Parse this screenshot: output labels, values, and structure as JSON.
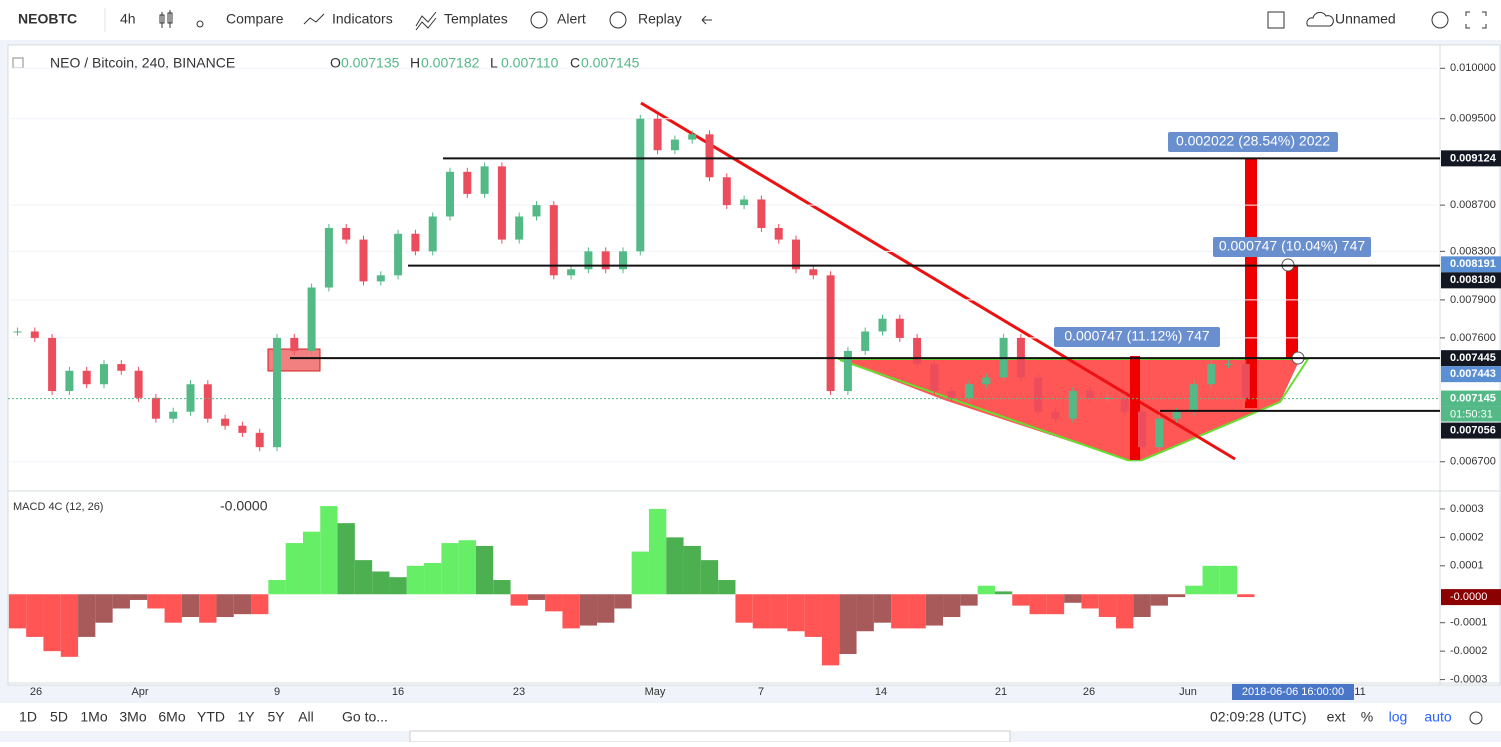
{
  "toolbar": {
    "symbol": "NEOBTC",
    "interval": "4h",
    "items": [
      "Compare",
      "Indicators",
      "Templates",
      "Alert",
      "Replay"
    ],
    "layout_name": "Unnamed"
  },
  "legend": {
    "title": "NEO / Bitcoin, 240, BINANCE",
    "ohlc": [
      {
        "key": "O",
        "value": "0.007135"
      },
      {
        "key": "H",
        "value": "0.007182"
      },
      {
        "key": "L",
        "value": "0.007110"
      },
      {
        "key": "C",
        "value": "0.007145"
      }
    ]
  },
  "price_chart": {
    "log": true,
    "ylim": [
      0.00651,
      0.01024
    ],
    "yticks": [
      {
        "value": 0.01,
        "label": "0.010000"
      },
      {
        "value": 0.0095,
        "label": "0.009500"
      },
      {
        "value": 0.0087,
        "label": "0.008700"
      },
      {
        "value": 0.0083,
        "label": "0.008300"
      },
      {
        "value": 0.0079,
        "label": "0.007900"
      },
      {
        "value": 0.0076,
        "label": "0.007600"
      },
      {
        "value": 0.0067,
        "label": "0.006700"
      }
    ],
    "closes": [
      0.00765,
      0.0076,
      0.0072,
      0.00735,
      0.00725,
      0.0074,
      0.00735,
      0.00715,
      0.007,
      0.00705,
      0.00725,
      0.007,
      0.00695,
      0.0069,
      0.0068,
      0.0076,
      0.0075,
      0.008,
      0.0085,
      0.0084,
      0.00805,
      0.0081,
      0.00845,
      0.0083,
      0.0086,
      0.009,
      0.0088,
      0.00905,
      0.0084,
      0.0086,
      0.0087,
      0.0081,
      0.00815,
      0.0083,
      0.00815,
      0.0083,
      0.0095,
      0.0092,
      0.0093,
      0.00935,
      0.00895,
      0.0087,
      0.00875,
      0.0085,
      0.0084,
      0.00815,
      0.0081,
      0.0072,
      0.0075,
      0.00765,
      0.00775,
      0.0076,
      0.0074,
      0.0072,
      0.00715,
      0.00725,
      0.0073,
      0.0076,
      0.0073,
      0.00705,
      0.007,
      0.0072,
      0.00715,
      0.00715,
      0.00705,
      0.0068,
      0.007,
      0.00705,
      0.00725,
      0.0074,
      0.0074,
      0.00715
    ],
    "price_labels": [
      {
        "value": 0.009124,
        "label": "0.009124",
        "style": "black"
      },
      {
        "value": 0.008191,
        "label": "0.008191",
        "style": "blue"
      },
      {
        "value": 0.00818,
        "label": "0.008180",
        "style": "black"
      },
      {
        "value": 0.007445,
        "label": "0.007445",
        "style": "black"
      },
      {
        "value": 0.007443,
        "label": "0.007443",
        "style": "blue"
      },
      {
        "value": 0.007145,
        "label": "0.007145",
        "style": "green"
      },
      {
        "value": 0.007056,
        "label": "0.007056",
        "style": "black"
      }
    ],
    "countdown": "01:50:31",
    "measures": [
      "0.002022 (28.54%) 2022",
      "0.000747 (10.04%) 747",
      "0.000747 (11.12%) 747"
    ]
  },
  "macd": {
    "title": "MACD 4C (12, 26)",
    "current": {
      "value": -1e-05,
      "label": "-0.0000"
    },
    "ylim": [
      -0.000312,
      0.000356
    ],
    "yticks": [
      0.0003,
      0.0002,
      0.0001,
      -0.0001,
      -0.0002,
      -0.0003
    ],
    "values": [
      -0.00012,
      -0.00015,
      -0.0002,
      -0.00022,
      -0.00015,
      -0.0001,
      -5e-05,
      -2e-05,
      -5e-05,
      -0.0001,
      -8e-05,
      -0.0001,
      -8e-05,
      -7e-05,
      -7e-05,
      5e-05,
      0.00018,
      0.00022,
      0.00031,
      0.00025,
      0.00012,
      8e-05,
      6e-05,
      0.0001,
      0.00011,
      0.00018,
      0.00019,
      0.00017,
      5e-05,
      -4e-05,
      -2e-05,
      -6e-05,
      -0.00012,
      -0.00011,
      -0.0001,
      -5e-05,
      0.00015,
      0.0003,
      0.0002,
      0.00017,
      0.00012,
      5e-05,
      -0.0001,
      -0.00012,
      -0.00012,
      -0.00013,
      -0.00015,
      -0.00025,
      -0.00021,
      -0.00013,
      -0.0001,
      -0.00012,
      -0.00012,
      -0.00011,
      -8e-05,
      -4e-05,
      3e-05,
      1e-05,
      -4e-05,
      -7e-05,
      -7e-05,
      -3e-05,
      -5e-05,
      -8e-05,
      -0.00012,
      -8e-05,
      -4e-05,
      -1e-05,
      3e-05,
      0.0001,
      0.0001,
      -1e-05
    ]
  },
  "time_axis": {
    "labels": [
      "26",
      "Apr",
      "9",
      "16",
      "23",
      "May",
      "7",
      "14",
      "21",
      "26",
      "Jun",
      "11"
    ],
    "cursor": "2018-06-06 16:00:00"
  },
  "bottom_bar": {
    "ranges": [
      "1D",
      "5D",
      "1Mo",
      "3Mo",
      "6Mo",
      "YTD",
      "1Y",
      "5Y",
      "All"
    ],
    "goto": "Go to...",
    "clock": "02:09:28 (UTC)",
    "options": [
      "ext",
      "%",
      "log",
      "auto"
    ]
  }
}
